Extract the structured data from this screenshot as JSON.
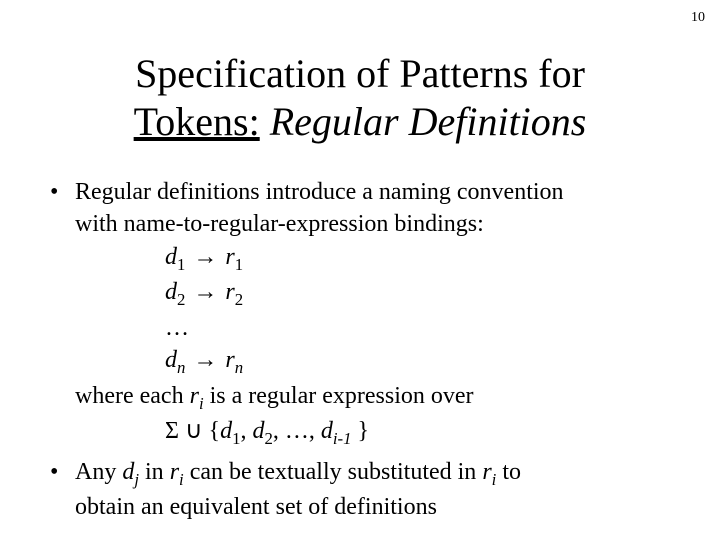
{
  "pageNumber": "10",
  "title": {
    "line1_plain": "Specification of Patterns for",
    "line2_a": "Tokens:",
    "line2_b": "Regular Definitions"
  },
  "bullet1": {
    "intro_a": "Regular definitions introduce a naming convention",
    "intro_b": "with name-to-regular-expression bindings:",
    "d": "d",
    "r": "r",
    "sub1": "1",
    "sub2": "2",
    "subn": "n",
    "arrow": "→",
    "dots": "…",
    "where_a": "where each ",
    "where_b": " is a regular expression over",
    "sigma": "Σ",
    "cup": "∪",
    "lbrace": "{",
    "rbrace": "}",
    "comma": ", ",
    "subi": "i",
    "subi1": "i-1"
  },
  "bullet2": {
    "a": "Any ",
    "d": "d",
    "j": "j",
    "b": " in ",
    "r": "r",
    "i": "i",
    "c": " can be textually substituted in ",
    "e": " to",
    "f": "obtain an equivalent set of definitions"
  }
}
